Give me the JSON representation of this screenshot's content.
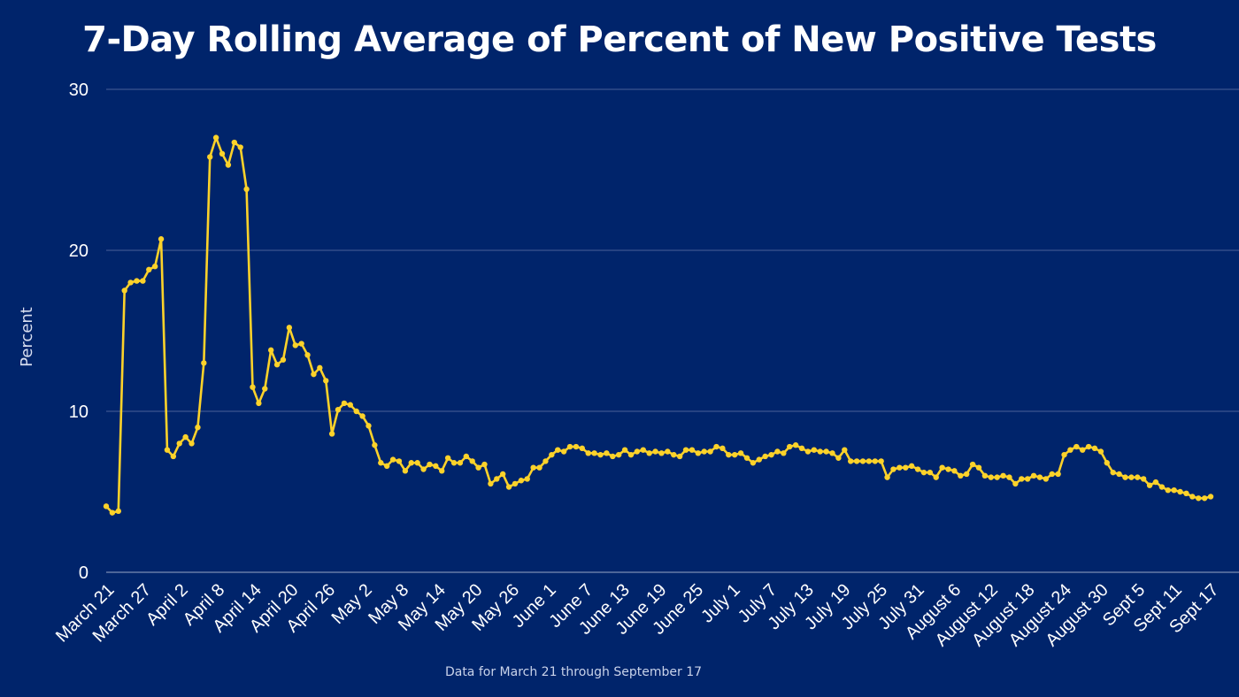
{
  "chart_data": {
    "type": "line",
    "title": "7-Day Rolling Average of Percent of New Positive Tests",
    "xlabel": "",
    "ylabel": "Percent",
    "footnote": "Data for March 21 through September 17",
    "ylim": [
      0,
      30
    ],
    "yticks": [
      0,
      10,
      20,
      30
    ],
    "grid": true,
    "x_tick_labels": [
      "March 21",
      "March 27",
      "April 2",
      "April 8",
      "April 14",
      "April 20",
      "April 26",
      "May 2",
      "May 8",
      "May 14",
      "May 20",
      "May 26",
      "June 1",
      "June 7",
      "June 13",
      "June 19",
      "June 25",
      "July 1",
      "July 7",
      "July 13",
      "July 19",
      "July 25",
      "July 31",
      "August 6",
      "August 12",
      "August 18",
      "August 24",
      "August 30",
      "Sept 5",
      "Sept 11",
      "Sept 17"
    ],
    "series": [
      {
        "color": "#fcd22a",
        "values": [
          4.1,
          3.7,
          3.8,
          17.5,
          18,
          18.1,
          18.1,
          18.8,
          19,
          20.7,
          7.6,
          7.2,
          8,
          8.4,
          8,
          9,
          13,
          25.8,
          27,
          26,
          25.3,
          26.7,
          26.4,
          23.8,
          11.5,
          10.5,
          11.4,
          13.8,
          12.9,
          13.2,
          15.2,
          14.1,
          14.2,
          13.5,
          12.3,
          12.7,
          11.9,
          8.6,
          10.1,
          10.5,
          10.4,
          10,
          9.7,
          9.1,
          7.9,
          6.8,
          6.6,
          7,
          6.9,
          6.3,
          6.8,
          6.8,
          6.4,
          6.7,
          6.6,
          6.3,
          7.1,
          6.8,
          6.8,
          7.2,
          6.9,
          6.5,
          6.7,
          5.5,
          5.8,
          6.1,
          5.3,
          5.5,
          5.7,
          5.8,
          6.5,
          6.5,
          6.9,
          7.3,
          7.6,
          7.5,
          7.8,
          7.8,
          7.7,
          7.4,
          7.4,
          7.3,
          7.4,
          7.2,
          7.3,
          7.6,
          7.3,
          7.5,
          7.6,
          7.4,
          7.5,
          7.4,
          7.5,
          7.3,
          7.2,
          7.6,
          7.6,
          7.4,
          7.5,
          7.5,
          7.8,
          7.7,
          7.3,
          7.3,
          7.4,
          7.1,
          6.8,
          7,
          7.2,
          7.3,
          7.5,
          7.4,
          7.8,
          7.9,
          7.7,
          7.5,
          7.6,
          7.5,
          7.5,
          7.4,
          7.1,
          7.6,
          6.9,
          6.9,
          6.9,
          6.9,
          6.9,
          6.9,
          5.9,
          6.4,
          6.5,
          6.5,
          6.6,
          6.4,
          6.2,
          6.2,
          5.9,
          6.5,
          6.4,
          6.3,
          6,
          6.1,
          6.7,
          6.5,
          6,
          5.9,
          5.9,
          6,
          5.9,
          5.5,
          5.8,
          5.8,
          6,
          5.9,
          5.8,
          6.1,
          6.1,
          7.3,
          7.6,
          7.8,
          7.6,
          7.8,
          7.7,
          7.5,
          6.8,
          6.2,
          6.1,
          5.9,
          5.9,
          5.9,
          5.8,
          5.4,
          5.6,
          5.3,
          5.1,
          5.1,
          5,
          4.9,
          4.7,
          4.6,
          4.6,
          4.7
        ]
      }
    ]
  }
}
